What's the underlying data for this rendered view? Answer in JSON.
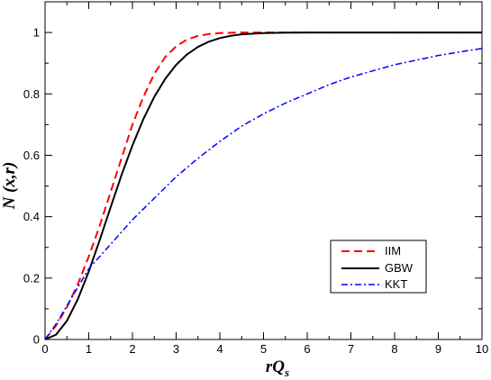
{
  "chart_data": {
    "type": "line",
    "title": "",
    "xlabel_main": "rQ",
    "xlabel_sub": "s",
    "ylabel": "N (x,r)",
    "xlim": [
      0,
      10
    ],
    "ylim": [
      0,
      1.1
    ],
    "x_ticks": [
      "0",
      "1",
      "2",
      "3",
      "4",
      "5",
      "6",
      "7",
      "8",
      "9",
      "10"
    ],
    "y_ticks": [
      "0",
      "0.2",
      "0.4",
      "0.6",
      "0.8",
      "1"
    ],
    "grid": false,
    "legend_position": "lower-right",
    "series": [
      {
        "name": "IIM",
        "color": "#ff0000",
        "dash": "dashed",
        "x": [
          0,
          0.25,
          0.5,
          0.75,
          1,
          1.25,
          1.5,
          1.75,
          2,
          2.25,
          2.5,
          2.75,
          3,
          3.25,
          3.5,
          3.75,
          4,
          4.25,
          4.5,
          5,
          5.5,
          6,
          7,
          8,
          9,
          10
        ],
        "y": [
          0,
          0.045,
          0.105,
          0.18,
          0.27,
          0.37,
          0.48,
          0.59,
          0.7,
          0.79,
          0.865,
          0.92,
          0.955,
          0.977,
          0.989,
          0.995,
          0.998,
          0.999,
          1.0,
          1.0,
          1.0,
          1.0,
          1.0,
          1.0,
          1.0,
          1.0
        ]
      },
      {
        "name": "GBW",
        "color": "#000000",
        "dash": "solid",
        "x": [
          0,
          0.25,
          0.5,
          0.75,
          1,
          1.25,
          1.5,
          1.75,
          2,
          2.25,
          2.5,
          2.75,
          3,
          3.25,
          3.5,
          3.75,
          4,
          4.25,
          4.5,
          5,
          5.5,
          6,
          7,
          8,
          9,
          10
        ],
        "y": [
          0,
          0.0155,
          0.0606,
          0.1313,
          0.2212,
          0.3234,
          0.4302,
          0.5355,
          0.6321,
          0.7179,
          0.7904,
          0.8489,
          0.8946,
          0.9287,
          0.9532,
          0.9701,
          0.9817,
          0.9892,
          0.9939,
          0.9981,
          0.9995,
          0.9999,
          1.0,
          1.0,
          1.0,
          1.0
        ]
      },
      {
        "name": "KKT",
        "color": "#0000ff",
        "dash": "dash-dot",
        "x": [
          0,
          0.25,
          0.5,
          0.75,
          1,
          1.5,
          2,
          2.5,
          3,
          3.5,
          4,
          4.5,
          5,
          5.5,
          6,
          6.5,
          7,
          7.5,
          8,
          8.5,
          9,
          9.5,
          10
        ],
        "y": [
          0,
          0.05,
          0.11,
          0.17,
          0.23,
          0.31,
          0.39,
          0.46,
          0.53,
          0.59,
          0.645,
          0.695,
          0.735,
          0.77,
          0.8,
          0.83,
          0.855,
          0.875,
          0.895,
          0.91,
          0.925,
          0.937,
          0.948
        ]
      }
    ]
  }
}
